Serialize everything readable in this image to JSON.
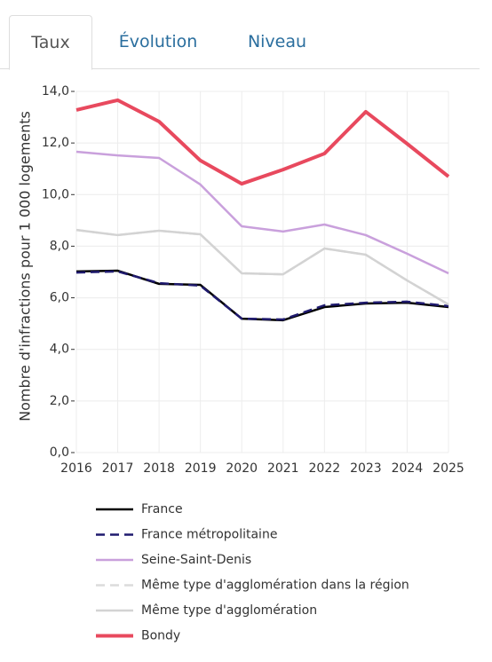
{
  "tabs": [
    "Taux",
    "Évolution",
    "Niveau"
  ],
  "chart_data": {
    "type": "line",
    "y_label": "Nombre d'infractions pour 1 000 logements",
    "categories": [
      "2016",
      "2017",
      "2018",
      "2019",
      "2020",
      "2021",
      "2022",
      "2023",
      "2024",
      "2025"
    ],
    "ylim": [
      0,
      14
    ],
    "yticks": [
      {
        "value": 0,
        "label": "0,0"
      },
      {
        "value": 2,
        "label": "2,0"
      },
      {
        "value": 4,
        "label": "4,0"
      },
      {
        "value": 6,
        "label": "6,0"
      },
      {
        "value": 8,
        "label": "8,0"
      },
      {
        "value": 10,
        "label": "10,0"
      },
      {
        "value": 12,
        "label": "12,0"
      },
      {
        "value": 14,
        "label": "14,0"
      }
    ],
    "grid": true,
    "series": [
      {
        "name": "France",
        "color": "#000000",
        "dashed": false,
        "width": 2.5,
        "values": [
          7.02,
          7.05,
          6.54,
          6.5,
          5.19,
          5.13,
          5.64,
          5.78,
          5.81,
          5.64
        ]
      },
      {
        "name": "France métropolitaine",
        "color": "#1f1a6e",
        "dashed": true,
        "width": 2.5,
        "values": [
          6.98,
          7.02,
          6.57,
          6.47,
          5.19,
          5.16,
          5.71,
          5.81,
          5.85,
          5.68
        ]
      },
      {
        "name": "Seine-Saint-Denis",
        "color": "#c9a0dc",
        "dashed": false,
        "width": 2.5,
        "values": [
          11.66,
          11.52,
          11.42,
          10.39,
          8.77,
          8.57,
          8.84,
          8.43,
          7.71,
          6.95
        ]
      },
      {
        "name": "Même type d'agglomération dans la région",
        "color": "#dcdcdc",
        "dashed": true,
        "width": 2.5,
        "values": [
          8.63,
          8.43,
          8.6,
          8.46,
          6.95,
          6.91,
          7.91,
          7.67,
          6.67,
          5.74
        ]
      },
      {
        "name": "Même type d'agglomération",
        "color": "#d3d3d3",
        "dashed": false,
        "width": 2.5,
        "values": [
          8.63,
          8.43,
          8.6,
          8.46,
          6.95,
          6.91,
          7.91,
          7.67,
          6.67,
          5.74
        ]
      },
      {
        "name": "Bondy",
        "color": "#e8495e",
        "dashed": false,
        "width": 4,
        "values": [
          13.28,
          13.66,
          12.83,
          11.32,
          10.42,
          10.97,
          11.59,
          13.21,
          11.97,
          10.7
        ]
      }
    ]
  }
}
